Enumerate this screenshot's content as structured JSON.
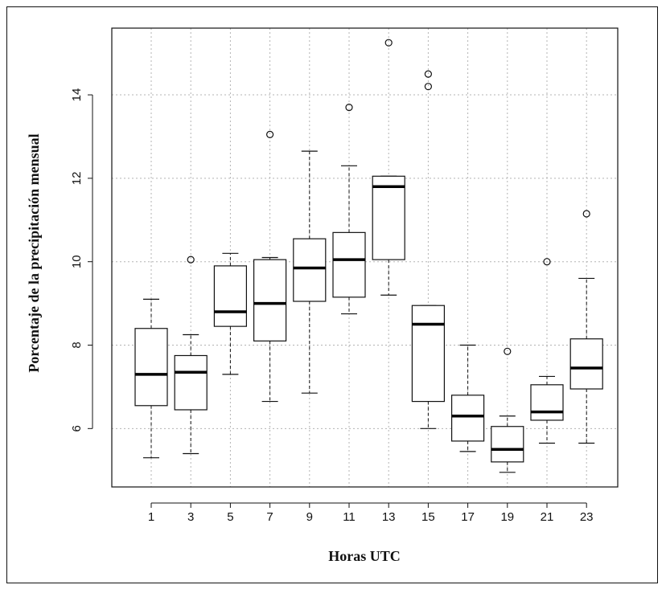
{
  "chart_data": {
    "type": "boxplot",
    "title": "",
    "xlabel": "Horas UTC",
    "ylabel": "Porcentaje de la precipitación mensual",
    "ylim": [
      4.6,
      15.6
    ],
    "yticks": [
      6,
      8,
      10,
      12,
      14
    ],
    "grid": true,
    "categories": [
      "1",
      "3",
      "5",
      "7",
      "9",
      "11",
      "13",
      "15",
      "17",
      "19",
      "21",
      "23"
    ],
    "boxes": [
      {
        "label": "1",
        "whisker_low": 5.3,
        "q1": 6.55,
        "median": 7.3,
        "q3": 8.4,
        "whisker_high": 9.1,
        "outliers": []
      },
      {
        "label": "3",
        "whisker_low": 5.4,
        "q1": 6.45,
        "median": 7.35,
        "q3": 7.75,
        "whisker_high": 8.25,
        "outliers": [
          10.05
        ]
      },
      {
        "label": "5",
        "whisker_low": 7.3,
        "q1": 8.45,
        "median": 8.8,
        "q3": 9.9,
        "whisker_high": 10.2,
        "outliers": []
      },
      {
        "label": "7",
        "whisker_low": 6.65,
        "q1": 8.1,
        "median": 9.0,
        "q3": 10.05,
        "whisker_high": 10.1,
        "outliers": [
          13.05
        ]
      },
      {
        "label": "9",
        "whisker_low": 6.85,
        "q1": 9.05,
        "median": 9.85,
        "q3": 10.55,
        "whisker_high": 12.65,
        "outliers": []
      },
      {
        "label": "11",
        "whisker_low": 8.75,
        "q1": 9.15,
        "median": 10.05,
        "q3": 10.7,
        "whisker_high": 12.3,
        "outliers": [
          13.7
        ]
      },
      {
        "label": "13",
        "whisker_low": 9.2,
        "q1": 10.05,
        "median": 11.8,
        "q3": 12.05,
        "whisker_high": 12.05,
        "outliers": [
          15.25
        ]
      },
      {
        "label": "15",
        "whisker_low": 6.0,
        "q1": 6.65,
        "median": 8.5,
        "q3": 8.95,
        "whisker_high": 8.95,
        "outliers": [
          14.2,
          14.5
        ]
      },
      {
        "label": "17",
        "whisker_low": 5.45,
        "q1": 5.7,
        "median": 6.3,
        "q3": 6.8,
        "whisker_high": 8.0,
        "outliers": []
      },
      {
        "label": "19",
        "whisker_low": 4.95,
        "q1": 5.2,
        "median": 5.5,
        "q3": 6.05,
        "whisker_high": 6.3,
        "outliers": [
          7.85
        ]
      },
      {
        "label": "21",
        "whisker_low": 5.65,
        "q1": 6.2,
        "median": 6.4,
        "q3": 7.05,
        "whisker_high": 7.25,
        "outliers": [
          10.0
        ]
      },
      {
        "label": "23",
        "whisker_low": 5.65,
        "q1": 6.95,
        "median": 7.45,
        "q3": 8.15,
        "whisker_high": 9.6,
        "outliers": [
          11.15
        ]
      }
    ]
  }
}
